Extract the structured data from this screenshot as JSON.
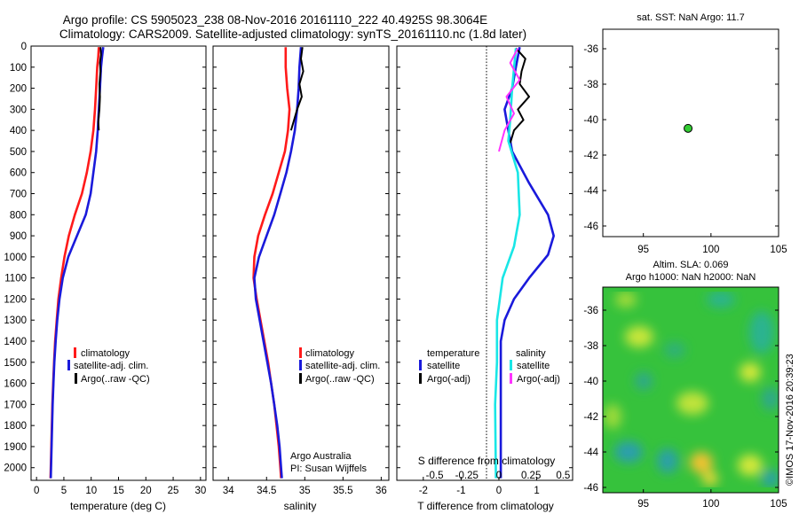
{
  "header": {
    "title_line1": "Argo profile: CS 5905023_238 08-Nov-2016 20161110_222 40.4925S 98.3064E",
    "title_line2": "Climatology: CARS2009. Satellite-adjusted climatology: synTS_20161110.nc (1.8d later)"
  },
  "colors": {
    "climatology": "#ff1a1a",
    "satellite": "#1a1adb",
    "argo": "#000000",
    "sat_salinity": "#19e6e6",
    "argo_salinity": "#ff33ff",
    "float_marker": "#33cc33"
  },
  "panel_temperature": {
    "xlabel": "temperature (deg C)",
    "legend": [
      "climatology",
      "satellite-adj. clim.",
      "Argo(..raw -QC)"
    ]
  },
  "panel_salinity": {
    "xlabel": "salinity",
    "legend": [
      "climatology",
      "satellite-adj. clim.",
      "Argo(..raw -QC)"
    ],
    "credit_line1": "Argo Australia",
    "credit_line2": "PI: Susan Wijffels"
  },
  "panel_difference": {
    "xlabel_bottom": "T difference from climatology",
    "xlabel_top": "S difference from climatology",
    "legend_temperature_title": "temperature",
    "legend_salinity_title": "salinity",
    "legend_temperature": [
      "satellite",
      "Argo(-adj)"
    ],
    "legend_salinity": [
      "satellite",
      "Argo(-adj)"
    ]
  },
  "panel_map_sst": {
    "title": "sat. SST: NaN Argo: 11.7",
    "float_lon": 98.3064,
    "float_lat": -40.4925
  },
  "panel_map_sla": {
    "title_line1": "Altim. SLA: 0.069",
    "title_line2": "Argo h1000: NaN h2000: NaN"
  },
  "side_stamp": "©IMOS 17-Nov-2016 20:39:23",
  "chart_data": [
    {
      "type": "line",
      "name": "temperature profile",
      "xlabel": "temperature (deg C)",
      "ylabel": "",
      "xlim": [
        -1,
        31
      ],
      "ylim": [
        2060,
        0
      ],
      "xticks": [
        0,
        5,
        10,
        15,
        20,
        25,
        30
      ],
      "yticks": [
        0,
        100,
        200,
        300,
        400,
        500,
        600,
        700,
        800,
        900,
        1000,
        1100,
        1200,
        1300,
        1400,
        1500,
        1600,
        1700,
        1800,
        1900,
        2000
      ],
      "series": [
        {
          "name": "climatology",
          "points": [
            [
              11.4,
              5
            ],
            [
              11.3,
              50
            ],
            [
              11.1,
              100
            ],
            [
              10.9,
              200
            ],
            [
              10.7,
              300
            ],
            [
              10.4,
              400
            ],
            [
              9.9,
              500
            ],
            [
              9.2,
              600
            ],
            [
              8.3,
              700
            ],
            [
              7.0,
              800
            ],
            [
              5.9,
              900
            ],
            [
              5.1,
              1000
            ],
            [
              4.5,
              1100
            ],
            [
              4.0,
              1200
            ],
            [
              3.7,
              1300
            ],
            [
              3.4,
              1400
            ],
            [
              3.2,
              1500
            ],
            [
              3.05,
              1600
            ],
            [
              2.9,
              1700
            ],
            [
              2.8,
              1800
            ],
            [
              2.7,
              1900
            ],
            [
              2.6,
              2000
            ],
            [
              2.55,
              2050
            ]
          ]
        },
        {
          "name": "satellite-adj. clim.",
          "points": [
            [
              12.2,
              5
            ],
            [
              12.0,
              50
            ],
            [
              11.8,
              100
            ],
            [
              11.6,
              200
            ],
            [
              11.4,
              300
            ],
            [
              11.2,
              400
            ],
            [
              10.9,
              500
            ],
            [
              10.4,
              600
            ],
            [
              9.9,
              700
            ],
            [
              9.0,
              800
            ],
            [
              7.4,
              900
            ],
            [
              5.8,
              1000
            ],
            [
              4.8,
              1100
            ],
            [
              4.2,
              1200
            ],
            [
              3.8,
              1300
            ],
            [
              3.5,
              1400
            ],
            [
              3.25,
              1500
            ],
            [
              3.1,
              1600
            ],
            [
              2.95,
              1700
            ],
            [
              2.85,
              1800
            ],
            [
              2.75,
              1900
            ],
            [
              2.65,
              2000
            ],
            [
              2.6,
              2050
            ]
          ]
        },
        {
          "name": "Argo(..raw -QC)",
          "points": [
            [
              11.7,
              5
            ],
            [
              11.8,
              40
            ],
            [
              11.6,
              80
            ],
            [
              11.7,
              120
            ],
            [
              11.5,
              180
            ],
            [
              11.6,
              240
            ],
            [
              11.5,
              300
            ],
            [
              11.3,
              360
            ],
            [
              11.4,
              400
            ]
          ]
        }
      ]
    },
    {
      "type": "line",
      "name": "salinity profile",
      "xlabel": "salinity",
      "ylabel": "",
      "xlim": [
        33.8,
        36.1
      ],
      "ylim": [
        2060,
        0
      ],
      "xticks": [
        34,
        34.5,
        35,
        35.5,
        36
      ],
      "series": [
        {
          "name": "climatology",
          "points": [
            [
              34.75,
              5
            ],
            [
              34.75,
              100
            ],
            [
              34.77,
              200
            ],
            [
              34.8,
              300
            ],
            [
              34.78,
              400
            ],
            [
              34.74,
              500
            ],
            [
              34.66,
              600
            ],
            [
              34.58,
              700
            ],
            [
              34.48,
              800
            ],
            [
              34.39,
              900
            ],
            [
              34.34,
              1000
            ],
            [
              34.33,
              1100
            ],
            [
              34.37,
              1200
            ],
            [
              34.42,
              1300
            ],
            [
              34.47,
              1400
            ],
            [
              34.52,
              1500
            ],
            [
              34.56,
              1600
            ],
            [
              34.6,
              1700
            ],
            [
              34.63,
              1800
            ],
            [
              34.66,
              1900
            ],
            [
              34.68,
              2000
            ],
            [
              34.69,
              2050
            ]
          ]
        },
        {
          "name": "satellite-adj. clim.",
          "points": [
            [
              34.95,
              5
            ],
            [
              34.93,
              100
            ],
            [
              34.92,
              200
            ],
            [
              34.9,
              300
            ],
            [
              34.87,
              400
            ],
            [
              34.82,
              500
            ],
            [
              34.76,
              600
            ],
            [
              34.68,
              700
            ],
            [
              34.6,
              800
            ],
            [
              34.5,
              900
            ],
            [
              34.4,
              1000
            ],
            [
              34.34,
              1100
            ],
            [
              34.36,
              1200
            ],
            [
              34.41,
              1300
            ],
            [
              34.46,
              1400
            ],
            [
              34.51,
              1500
            ],
            [
              34.56,
              1600
            ],
            [
              34.6,
              1700
            ],
            [
              34.64,
              1800
            ],
            [
              34.67,
              1900
            ],
            [
              34.69,
              2000
            ],
            [
              34.7,
              2050
            ]
          ]
        },
        {
          "name": "Argo(..raw -QC)",
          "points": [
            [
              34.97,
              5
            ],
            [
              34.95,
              60
            ],
            [
              34.98,
              120
            ],
            [
              34.93,
              180
            ],
            [
              34.96,
              240
            ],
            [
              34.9,
              300
            ],
            [
              34.86,
              350
            ],
            [
              34.82,
              400
            ]
          ]
        }
      ]
    },
    {
      "type": "line",
      "name": "difference from climatology",
      "xlabel": "T difference from climatology",
      "x2label": "S difference from climatology",
      "xlim": [
        -2.7,
        1.95
      ],
      "ylim": [
        2060,
        0
      ],
      "xticks": [
        -2,
        -1,
        0,
        1
      ],
      "x2ticks": [
        -0.5,
        -0.25,
        0,
        0.25,
        0.5
      ],
      "series": [
        {
          "name": "temperature satellite",
          "points": [
            [
              0.55,
              5
            ],
            [
              0.45,
              100
            ],
            [
              0.35,
              200
            ],
            [
              0.15,
              300
            ],
            [
              0.25,
              400
            ],
            [
              0.35,
              500
            ],
            [
              0.8,
              650
            ],
            [
              1.3,
              800
            ],
            [
              1.45,
              900
            ],
            [
              1.3,
              990
            ],
            [
              0.8,
              1100
            ],
            [
              0.4,
              1200
            ],
            [
              0.15,
              1300
            ],
            [
              0.05,
              1400
            ],
            [
              0.05,
              1600
            ],
            [
              0.05,
              2050
            ]
          ]
        },
        {
          "name": "temperature Argo(-adj)",
          "points": [
            [
              0.45,
              10
            ],
            [
              0.7,
              60
            ],
            [
              0.6,
              120
            ],
            [
              0.55,
              180
            ],
            [
              0.8,
              240
            ],
            [
              0.5,
              300
            ],
            [
              0.65,
              350
            ],
            [
              0.4,
              400
            ],
            [
              0.3,
              460
            ]
          ]
        },
        {
          "name": "salinity satellite",
          "points": [
            [
              0.45,
              10
            ],
            [
              0.35,
              200
            ],
            [
              0.3,
              350
            ],
            [
              0.25,
              450
            ],
            [
              0.5,
              600
            ],
            [
              0.55,
              800
            ],
            [
              0.4,
              950
            ],
            [
              0.1,
              1100
            ],
            [
              -0.05,
              1300
            ],
            [
              -0.05,
              1500
            ],
            [
              -0.1,
              1700
            ],
            [
              -0.08,
              2050
            ]
          ]
        },
        {
          "name": "salinity Argo(-adj)",
          "points": [
            [
              0.5,
              10
            ],
            [
              0.3,
              80
            ],
            [
              0.55,
              160
            ],
            [
              0.2,
              240
            ],
            [
              0.4,
              320
            ],
            [
              0.15,
              400
            ],
            [
              0.0,
              500
            ]
          ]
        }
      ]
    },
    {
      "type": "scatter",
      "name": "SST map",
      "xlim": [
        92,
        105
      ],
      "ylim": [
        -46.6,
        -34.9
      ],
      "xticks": [
        95,
        100,
        105
      ],
      "yticks": [
        -36,
        -38,
        -40,
        -42,
        -44,
        -46
      ],
      "points": [
        [
          98.3064,
          -40.4925
        ]
      ]
    },
    {
      "type": "heatmap",
      "name": "SLA map",
      "xlim": [
        92,
        105
      ],
      "ylim": [
        -46.3,
        -34.7
      ],
      "xticks": [
        95,
        100,
        105
      ],
      "yticks": [
        -36,
        -38,
        -40,
        -42,
        -44,
        -46
      ]
    }
  ]
}
